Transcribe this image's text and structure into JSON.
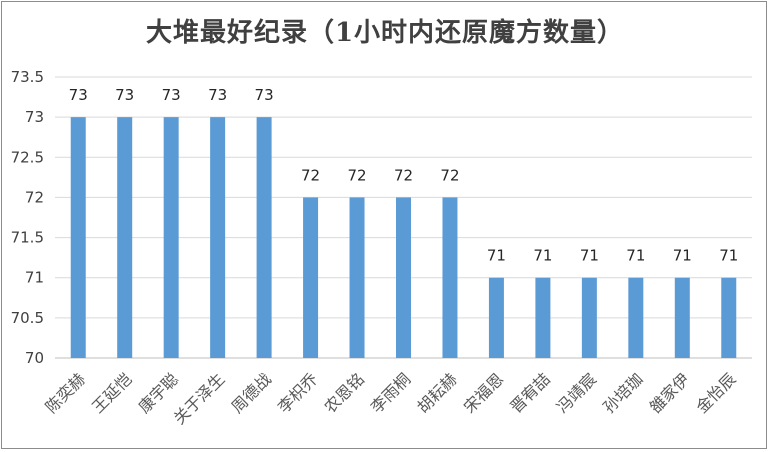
{
  "chart_data": {
    "type": "bar",
    "title": "大堆最好纪录（1小时内还原魔方数量）",
    "xlabel": "",
    "ylabel": "",
    "ylim": [
      70,
      73.5
    ],
    "yticks": [
      "70",
      "70.5",
      "71",
      "71.5",
      "72",
      "72.5",
      "73",
      "73.5"
    ],
    "grid": true,
    "legend": "none",
    "bar_color": "#5b9bd5",
    "categories": [
      "陈奕赫",
      "王延恺",
      "康宇聪",
      "关于泽生",
      "周德战",
      "李枳乔",
      "农恩铭",
      "李雨桐",
      "胡耘赫",
      "宋福恩",
      "晋宥喆",
      "冯靖宸",
      "孙培珈",
      "雒家伊",
      "金怡辰"
    ],
    "values": [
      73,
      73,
      73,
      73,
      73,
      72,
      72,
      72,
      72,
      71,
      71,
      71,
      71,
      71,
      71
    ],
    "data_labels": [
      "73",
      "73",
      "73",
      "73",
      "73",
      "72",
      "72",
      "72",
      "72",
      "71",
      "71",
      "71",
      "71",
      "71",
      "71"
    ]
  }
}
